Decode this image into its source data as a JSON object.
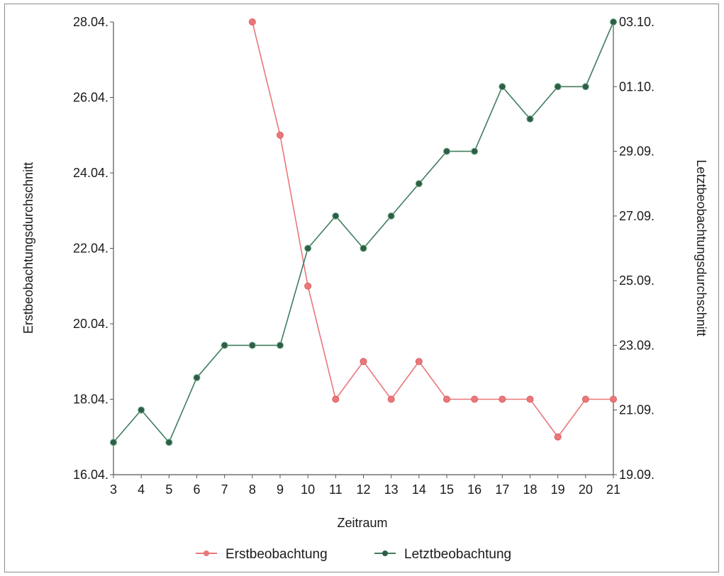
{
  "chart_data": {
    "type": "line",
    "xlabel": "Zeitraum",
    "ylabel_left": "Erstbeobachtungsdurchschnitt",
    "ylabel_right": "Letztbeobachtungsdurchschnitt",
    "x": [
      3,
      4,
      5,
      6,
      7,
      8,
      9,
      10,
      11,
      12,
      13,
      14,
      15,
      16,
      17,
      18,
      19,
      20,
      21
    ],
    "xlim": [
      3,
      21
    ],
    "y_left": {
      "ticks": [
        "16.04.",
        "18.04.",
        "20.04.",
        "22.04.",
        "24.04.",
        "26.04.",
        "28.04."
      ],
      "range_days": [
        16,
        28
      ]
    },
    "y_right": {
      "ticks": [
        "19.09.",
        "21.09.",
        "23.09.",
        "25.09.",
        "27.09.",
        "29.09.",
        "01.10.",
        "03.10."
      ],
      "range_days": [
        19,
        33
      ]
    },
    "series": [
      {
        "name": "Erstbeobachtung",
        "axis": "left",
        "color": "#e8787a",
        "x": [
          8,
          9,
          10,
          11,
          12,
          13,
          14,
          15,
          16,
          17,
          18,
          19,
          20,
          21
        ],
        "days": [
          28,
          25,
          21,
          18,
          19,
          18,
          19,
          18,
          18,
          18,
          18,
          17,
          18,
          18
        ],
        "labels": [
          "28.04.",
          "25.04.",
          "21.04.",
          "18.04.",
          "19.04.",
          "18.04.",
          "19.04.",
          "18.04.",
          "18.04.",
          "18.04.",
          "18.04.",
          "17.04.",
          "18.04.",
          "18.04."
        ]
      },
      {
        "name": "Letztbeobachtung",
        "axis": "right",
        "color": "#3f7d5e",
        "x": [
          3,
          4,
          5,
          6,
          7,
          8,
          9,
          10,
          11,
          12,
          13,
          14,
          15,
          16,
          17,
          18,
          19,
          20,
          21
        ],
        "days": [
          20,
          21,
          20,
          22,
          23,
          23,
          23,
          26,
          27,
          26,
          27,
          28,
          29,
          29,
          31,
          30,
          31,
          31,
          33
        ],
        "labels": [
          "20.09.",
          "21.09.",
          "20.09.",
          "22.09.",
          "23.09.",
          "23.09.",
          "23.09.",
          "26.09.",
          "27.09.",
          "26.09.",
          "27.09.",
          "28.09.",
          "29.09.",
          "29.09.",
          "01.10.",
          "30.09.",
          "01.10.",
          "01.10.",
          "03.10."
        ]
      }
    ],
    "legend": "bottom",
    "grid": false
  }
}
